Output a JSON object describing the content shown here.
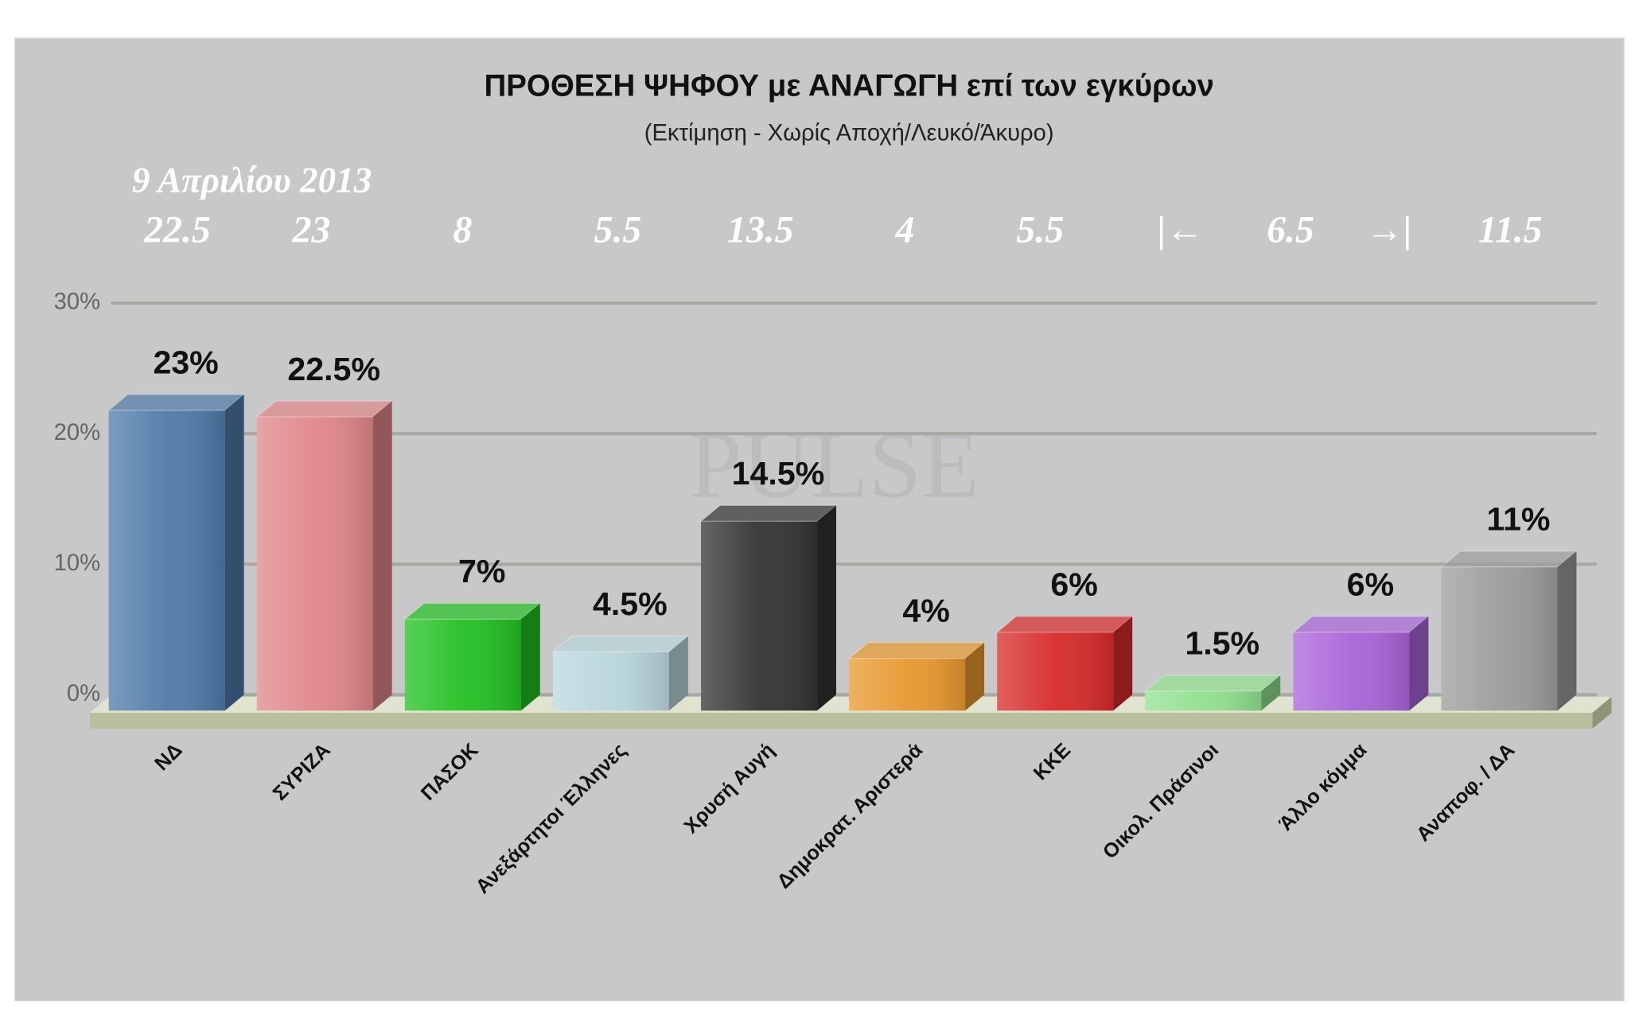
{
  "chart_data": {
    "type": "bar",
    "title": "ΠΡΟΘΕΣΗ ΨΗΦΟΥ με ΑΝΑΓΩΓΗ επί των εγκύρων",
    "subtitle": "(Εκτίμηση  -  Χωρίς Αποχή/Λευκό/Άκυρο)",
    "watermark": "PULSE",
    "categories": [
      "ΝΔ",
      "ΣΥΡΙΖΑ",
      "ΠΑΣΟΚ",
      "Ανεξάρτητοι Έλληνες",
      "Χρυσή Αυγή",
      "Δημοκρατ. Αριστερά",
      "ΚΚΕ",
      "Οικολ. Πράσινοι",
      "Άλλο κόμμα",
      "Αναποφ. / ΔΑ"
    ],
    "values": [
      23,
      22.5,
      7,
      4.5,
      14.5,
      4,
      6,
      1.5,
      6,
      11
    ],
    "value_labels": [
      "23%",
      "22.5%",
      "7%",
      "4.5%",
      "14.5%",
      "4%",
      "6%",
      "1.5%",
      "6%",
      "11%"
    ],
    "colors": [
      "#4f7aa8",
      "#e0868a",
      "#22c022",
      "#b8d6dc",
      "#333333",
      "#e8982e",
      "#d82a2a",
      "#90e090",
      "#a864d8",
      "#9c9c9c"
    ],
    "ylim": [
      0,
      30
    ],
    "yticks": [
      {
        "value": 0,
        "label": "0%"
      },
      {
        "value": 10,
        "label": "10%"
      },
      {
        "value": 20,
        "label": "20%"
      },
      {
        "value": 30,
        "label": "30%"
      }
    ],
    "grid": true,
    "comparison": {
      "title": "9 Απριλίου 2013",
      "values": [
        22.5,
        23,
        8,
        5.5,
        13.5,
        4,
        5.5,
        6.5,
        11.5
      ],
      "bracket": [
        "|←",
        "→|"
      ]
    }
  }
}
